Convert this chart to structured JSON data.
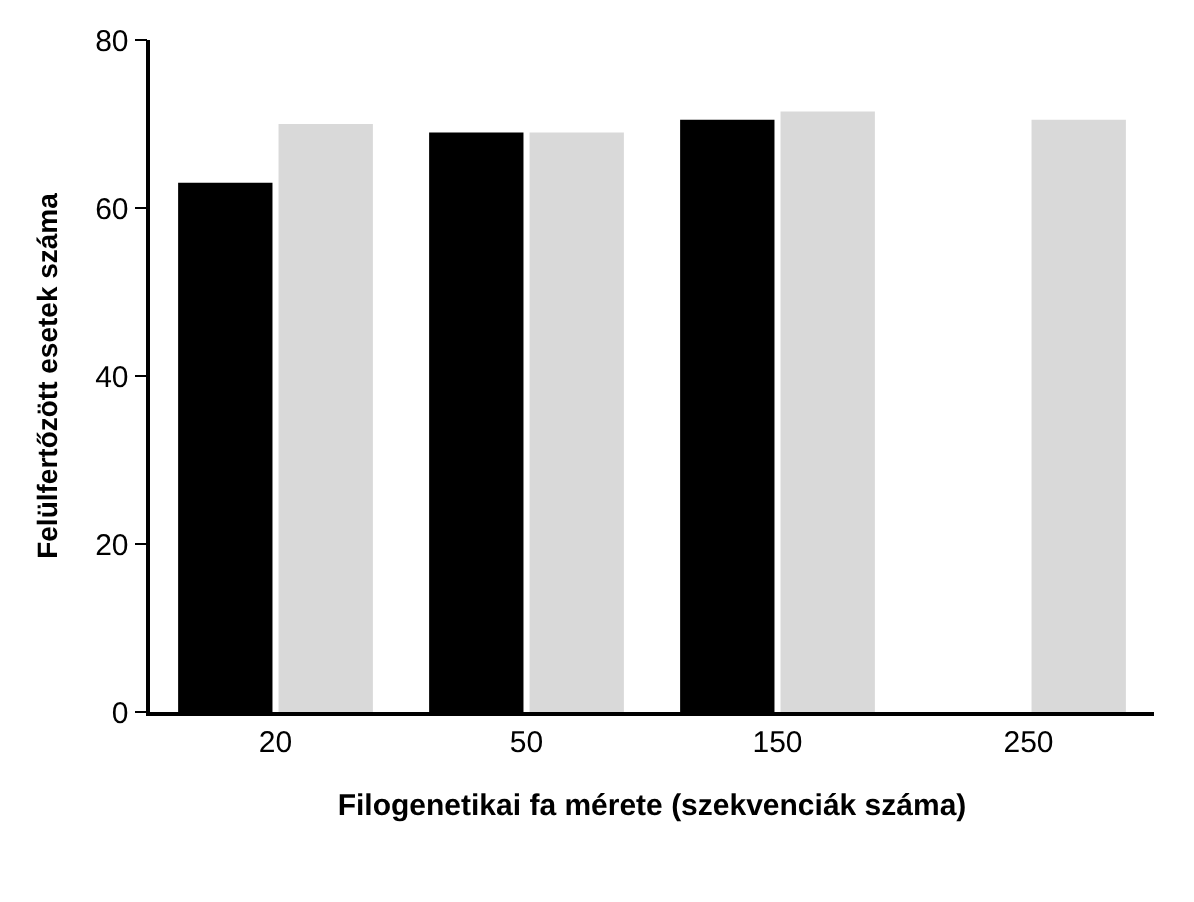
{
  "chart_data": {
    "type": "bar",
    "xlabel": "Filogenetikai fa mérete (szekvenciák száma)",
    "ylabel": "Felülfertőzött esetek száma",
    "categories": [
      "20",
      "50",
      "150",
      "250"
    ],
    "series": [
      {
        "color": "#000000",
        "values": [
          63,
          69,
          70.5,
          null
        ]
      },
      {
        "color": "#d9d9d9",
        "values": [
          70,
          69,
          71.5,
          70.5
        ]
      }
    ],
    "ylim": [
      0,
      80
    ],
    "yticks": [
      0,
      20,
      40,
      60,
      80
    ]
  }
}
